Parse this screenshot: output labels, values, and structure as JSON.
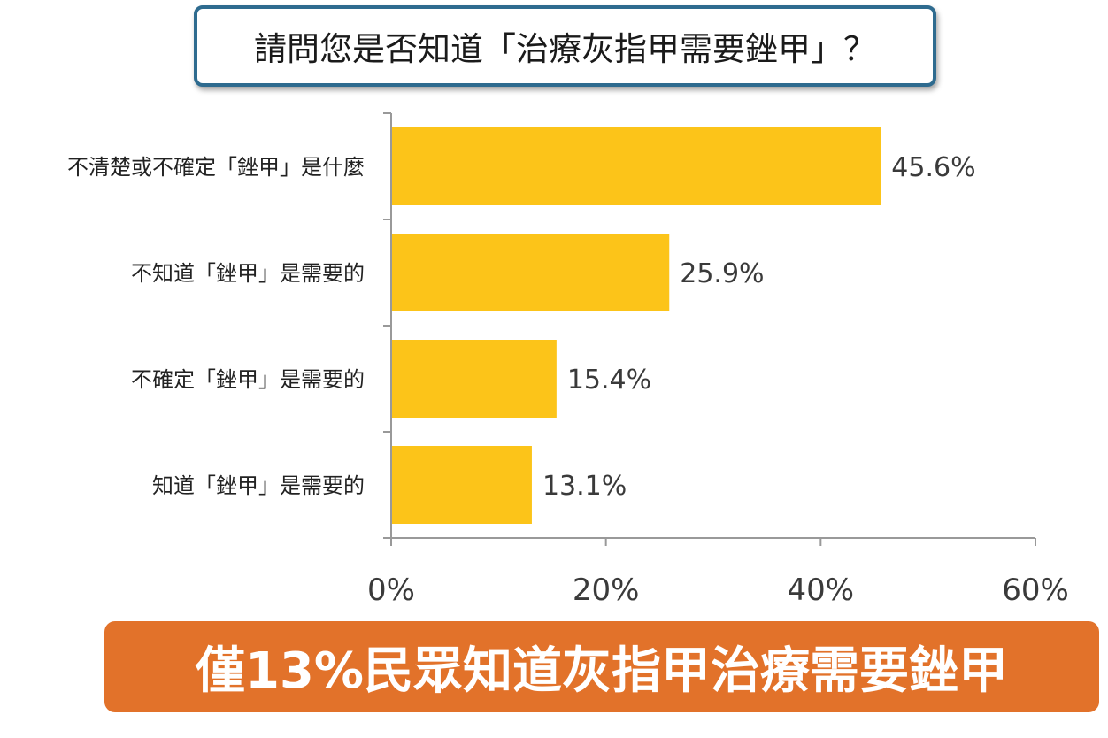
{
  "question": "請問您是否知道「治療灰指甲需要銼甲」？",
  "conclusion": "僅13%民眾知道灰指甲治療需要銼甲",
  "colors": {
    "bar": "#fcc419",
    "frame": "#2e6b8f",
    "conclusion_bg": "#e2722a",
    "axis": "#999999"
  },
  "chart_data": {
    "type": "bar",
    "orientation": "horizontal",
    "title": "",
    "xlabel": "",
    "ylabel": "",
    "categories": [
      "不清楚或不確定「銼甲」是什麼",
      "不知道「銼甲」是需要的",
      "不確定「銼甲」是需要的",
      "知道「銼甲」是需要的"
    ],
    "values": [
      45.6,
      25.9,
      15.4,
      13.1
    ],
    "value_labels": [
      "45.6%",
      "25.9%",
      "15.4%",
      "13.1%"
    ],
    "xlim": [
      0,
      60
    ],
    "ticks": [
      0,
      20,
      40,
      60
    ],
    "tick_labels": [
      "0%",
      "20%",
      "40%",
      "60%"
    ],
    "grid": false,
    "legend": "none"
  }
}
